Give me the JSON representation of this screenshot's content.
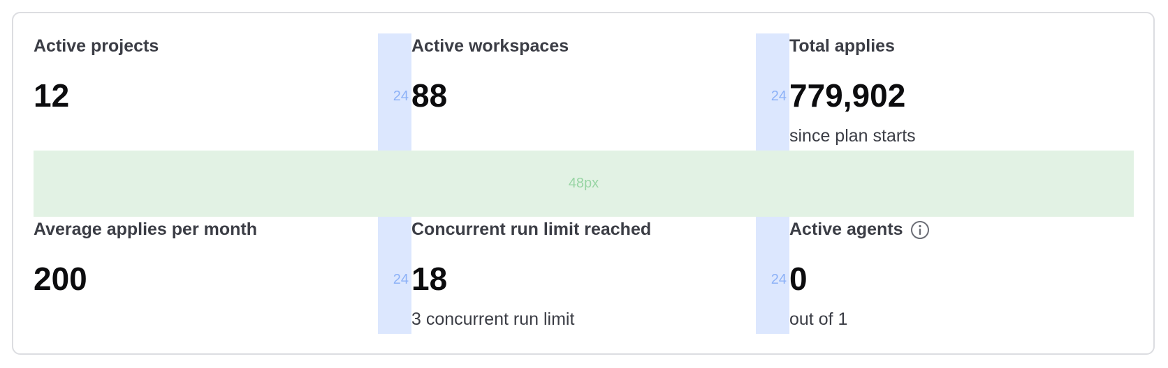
{
  "metrics": [
    {
      "label": "Active projects",
      "value": "12",
      "sub": ""
    },
    {
      "label": "Active workspaces",
      "value": "88",
      "sub": ""
    },
    {
      "label": "Total applies",
      "value": "779,902",
      "sub": "since plan starts"
    },
    {
      "label": "Average applies per month",
      "value": "200",
      "sub": ""
    },
    {
      "label": "Concurrent run limit reached",
      "value": "18",
      "sub": "3 concurrent run limit"
    },
    {
      "label": "Active agents",
      "value": "0",
      "sub": "out of 1",
      "icon": "info-icon"
    }
  ],
  "overlay": {
    "column_gap_label": "24",
    "row_gap_label": "48px",
    "column_gap_color": "#dce7fe",
    "row_gap_color": "#e2f2e4"
  }
}
